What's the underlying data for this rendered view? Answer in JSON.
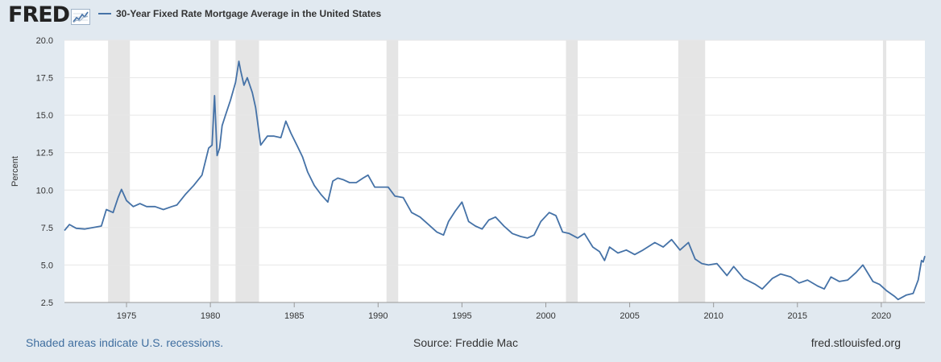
{
  "header": {
    "logo_text": "FRED",
    "logo_icon": "fred-graph-icon",
    "series_label": "30-Year Fixed Rate Mortgage Average in the United States"
  },
  "footer": {
    "recession_note": "Shaded areas indicate U.S. recessions.",
    "source": "Source: Freddie Mac",
    "site": "fred.stlouisfed.org"
  },
  "colors": {
    "line": "#4572a7",
    "recession": "#e5e5e5",
    "background": "#e1e9f0",
    "plot_bg": "#ffffff",
    "grid": "#e6e6e6"
  },
  "chart_data": {
    "type": "line",
    "title": "",
    "xlabel": "",
    "ylabel": "Percent",
    "xlim": [
      1971.3,
      2022.6
    ],
    "ylim": [
      2.5,
      20.0
    ],
    "yticks": [
      2.5,
      5.0,
      7.5,
      10.0,
      12.5,
      15.0,
      17.5,
      20.0
    ],
    "ytick_labels": [
      "2.5",
      "5.0",
      "7.5",
      "10.0",
      "12.5",
      "15.0",
      "17.5",
      "20.0"
    ],
    "xticks": [
      1975,
      1980,
      1985,
      1990,
      1995,
      2000,
      2005,
      2010,
      2015,
      2020
    ],
    "xtick_labels": [
      "1975",
      "1980",
      "1985",
      "1990",
      "1995",
      "2000",
      "2005",
      "2010",
      "2015",
      "2020"
    ],
    "grid": "horizontal",
    "legend": "top-left",
    "recessions": [
      [
        1973.9,
        1975.2
      ],
      [
        1980.0,
        1980.5
      ],
      [
        1981.5,
        1982.9
      ],
      [
        1990.5,
        1991.2
      ],
      [
        2001.2,
        2001.9
      ],
      [
        2007.9,
        2009.5
      ],
      [
        2020.1,
        2020.3
      ]
    ],
    "series": [
      {
        "name": "30-Year Fixed Rate Mortgage Average in the United States",
        "x": [
          1971.3,
          1971.6,
          1972.0,
          1972.5,
          1973.0,
          1973.5,
          1973.8,
          1974.2,
          1974.5,
          1974.7,
          1975.0,
          1975.4,
          1975.8,
          1976.2,
          1976.7,
          1977.2,
          1977.7,
          1978.0,
          1978.5,
          1979.0,
          1979.5,
          1979.9,
          1980.1,
          1980.25,
          1980.4,
          1980.55,
          1980.7,
          1980.9,
          1981.2,
          1981.5,
          1981.7,
          1981.8,
          1982.0,
          1982.2,
          1982.5,
          1982.7,
          1983.0,
          1983.4,
          1983.8,
          1984.2,
          1984.5,
          1984.8,
          1985.2,
          1985.5,
          1985.8,
          1986.2,
          1986.6,
          1987.0,
          1987.3,
          1987.6,
          1987.9,
          1988.3,
          1988.7,
          1989.1,
          1989.4,
          1989.8,
          1990.2,
          1990.6,
          1991.0,
          1991.5,
          1992.0,
          1992.5,
          1993.0,
          1993.5,
          1993.9,
          1994.2,
          1994.6,
          1995.0,
          1995.4,
          1995.8,
          1996.2,
          1996.6,
          1997.0,
          1997.5,
          1998.0,
          1998.5,
          1998.9,
          1999.3,
          1999.7,
          2000.2,
          2000.6,
          2001.0,
          2001.4,
          2001.9,
          2002.3,
          2002.8,
          2003.2,
          2003.5,
          2003.8,
          2004.3,
          2004.8,
          2005.3,
          2005.8,
          2006.5,
          2007.0,
          2007.5,
          2008.0,
          2008.5,
          2008.9,
          2009.3,
          2009.7,
          2010.2,
          2010.8,
          2011.2,
          2011.8,
          2012.5,
          2012.9,
          2013.5,
          2014.0,
          2014.6,
          2015.1,
          2015.6,
          2016.2,
          2016.6,
          2017.0,
          2017.5,
          2018.0,
          2018.5,
          2018.9,
          2019.5,
          2019.9,
          2020.3,
          2020.8,
          2021.0,
          2021.5,
          2021.9,
          2022.2,
          2022.4,
          2022.5,
          2022.6
        ],
        "values": [
          7.3,
          7.7,
          7.45,
          7.4,
          7.5,
          7.6,
          8.7,
          8.5,
          9.5,
          10.05,
          9.3,
          8.9,
          9.1,
          8.9,
          8.9,
          8.7,
          8.9,
          9.0,
          9.7,
          10.3,
          11.0,
          12.8,
          13.0,
          16.3,
          12.3,
          12.8,
          14.3,
          15.0,
          16.0,
          17.2,
          18.6,
          18.0,
          17.0,
          17.5,
          16.5,
          15.5,
          13.0,
          13.6,
          13.6,
          13.5,
          14.6,
          13.8,
          12.9,
          12.2,
          11.2,
          10.3,
          9.7,
          9.2,
          10.6,
          10.8,
          10.7,
          10.5,
          10.5,
          10.8,
          11.0,
          10.2,
          10.2,
          10.2,
          9.6,
          9.5,
          8.5,
          8.2,
          7.7,
          7.2,
          7.0,
          7.9,
          8.6,
          9.2,
          7.9,
          7.6,
          7.4,
          8.0,
          8.2,
          7.6,
          7.1,
          6.9,
          6.8,
          7.0,
          7.9,
          8.5,
          8.3,
          7.2,
          7.1,
          6.8,
          7.1,
          6.2,
          5.9,
          5.3,
          6.2,
          5.8,
          6.0,
          5.7,
          6.0,
          6.5,
          6.2,
          6.7,
          6.0,
          6.5,
          5.4,
          5.1,
          5.0,
          5.1,
          4.3,
          4.9,
          4.1,
          3.7,
          3.4,
          4.1,
          4.4,
          4.2,
          3.8,
          4.0,
          3.6,
          3.4,
          4.2,
          3.9,
          4.0,
          4.5,
          5.0,
          3.9,
          3.7,
          3.3,
          2.9,
          2.7,
          3.0,
          3.1,
          4.0,
          5.3,
          5.2,
          5.6
        ]
      }
    ]
  }
}
